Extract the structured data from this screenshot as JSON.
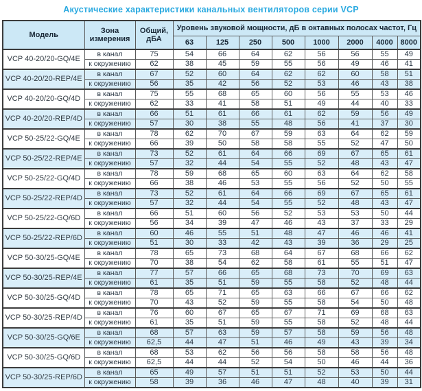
{
  "title": "Акустические характеристики канальных вентиляторов  серии VCP",
  "colors": {
    "title_text": "#29a9e0",
    "header_bg": "#cce8f6",
    "shaded_row_bg": "#d9eef9",
    "border": "#3c3c3c",
    "cell_text": "#2a3744"
  },
  "table": {
    "headers": {
      "model": "Модель",
      "zone": "Зона измерения",
      "total": "Общий, дБА",
      "total_line1": "Общий,",
      "total_line2": "дБА",
      "spl_group": "Уровень звуковой мощности, дБ в октавных полосах частот, Гц",
      "frequencies": [
        "63",
        "125",
        "250",
        "500",
        "1000",
        "2000",
        "4000",
        "8000"
      ]
    },
    "groups": [
      {
        "model": "VCP 40-20/20-GQ/4E",
        "shaded": false,
        "rows": [
          {
            "zone": "в канал",
            "total": "75",
            "values": [
              "54",
              "66",
              "64",
              "62",
              "56",
              "56",
              "55",
              "49"
            ]
          },
          {
            "zone": "к окружению",
            "total": "62",
            "values": [
              "38",
              "45",
              "59",
              "55",
              "56",
              "49",
              "46",
              "41"
            ]
          }
        ]
      },
      {
        "model": "VCP 40-20/20-REP/4E",
        "shaded": true,
        "rows": [
          {
            "zone": "в канал",
            "total": "67",
            "values": [
              "52",
              "60",
              "64",
              "62",
              "62",
              "60",
              "58",
              "51"
            ]
          },
          {
            "zone": "к окружению",
            "total": "56",
            "values": [
              "35",
              "42",
              "56",
              "52",
              "53",
              "46",
              "43",
              "38"
            ]
          }
        ]
      },
      {
        "model": "VCP 40-20/20-GQ/4D",
        "shaded": false,
        "rows": [
          {
            "zone": "в канал",
            "total": "75",
            "values": [
              "55",
              "68",
              "65",
              "60",
              "56",
              "55",
              "53",
              "46"
            ]
          },
          {
            "zone": "к окружению",
            "total": "62",
            "values": [
              "33",
              "41",
              "58",
              "51",
              "49",
              "44",
              "40",
              "33"
            ]
          }
        ]
      },
      {
        "model": "VCP 40-20/20-REP/4D",
        "shaded": true,
        "rows": [
          {
            "zone": "в канал",
            "total": "66",
            "values": [
              "51",
              "61",
              "66",
              "61",
              "62",
              "59",
              "56",
              "49"
            ]
          },
          {
            "zone": "к окружению",
            "total": "57",
            "values": [
              "30",
              "38",
              "55",
              "48",
              "56",
              "41",
              "37",
              "30"
            ]
          }
        ]
      },
      {
        "model": "VCP 50-25/22-GQ/4E",
        "shaded": false,
        "rows": [
          {
            "zone": "в канал",
            "total": "78",
            "values": [
              "62",
              "70",
              "67",
              "59",
              "63",
              "64",
              "62",
              "59"
            ]
          },
          {
            "zone": "к окружению",
            "total": "66",
            "values": [
              "39",
              "50",
              "58",
              "58",
              "55",
              "52",
              "47",
              "50"
            ]
          }
        ]
      },
      {
        "model": "VCP 50-25/22-REP/4E",
        "shaded": true,
        "rows": [
          {
            "zone": "в канал",
            "total": "73",
            "values": [
              "52",
              "61",
              "64",
              "66",
              "69",
              "67",
              "65",
              "61"
            ]
          },
          {
            "zone": "к окружению",
            "total": "57",
            "values": [
              "32",
              "44",
              "54",
              "55",
              "52",
              "48",
              "43",
              "47"
            ]
          }
        ]
      },
      {
        "model": "VCP 50-25/22-GQ/4D",
        "shaded": false,
        "rows": [
          {
            "zone": "в канал",
            "total": "78",
            "values": [
              "59",
              "68",
              "65",
              "60",
              "63",
              "64",
              "62",
              "58"
            ]
          },
          {
            "zone": "к окружению",
            "total": "66",
            "values": [
              "38",
              "46",
              "53",
              "55",
              "56",
              "52",
              "50",
              "55"
            ]
          }
        ]
      },
      {
        "model": "VCP 50-25/22-REP/4D",
        "shaded": true,
        "rows": [
          {
            "zone": "в канал",
            "total": "73",
            "values": [
              "52",
              "61",
              "64",
              "66",
              "69",
              "67",
              "65",
              "61"
            ]
          },
          {
            "zone": "к окружению",
            "total": "57",
            "values": [
              "32",
              "44",
              "54",
              "55",
              "52",
              "48",
              "43",
              "47"
            ]
          }
        ]
      },
      {
        "model": "VCP 50-25/22-GQ/6D",
        "shaded": false,
        "rows": [
          {
            "zone": "в канал",
            "total": "66",
            "values": [
              "51",
              "60",
              "56",
              "52",
              "53",
              "53",
              "50",
              "44"
            ]
          },
          {
            "zone": "к окружению",
            "total": "56",
            "values": [
              "34",
              "39",
              "47",
              "46",
              "43",
              "37",
              "33",
              "29"
            ]
          }
        ]
      },
      {
        "model": "VCP 50-25/22-REP/6D",
        "shaded": true,
        "rows": [
          {
            "zone": "в канал",
            "total": "60",
            "values": [
              "46",
              "55",
              "51",
              "48",
              "47",
              "46",
              "46",
              "41"
            ]
          },
          {
            "zone": "к окружению",
            "total": "51",
            "values": [
              "30",
              "33",
              "42",
              "43",
              "39",
              "36",
              "29",
              "25"
            ]
          }
        ]
      },
      {
        "model": "VCP 50-30/25-GQ/4E",
        "shaded": false,
        "rows": [
          {
            "zone": "в канал",
            "total": "78",
            "values": [
              "65",
              "73",
              "68",
              "64",
              "67",
              "68",
              "66",
              "62"
            ]
          },
          {
            "zone": "к окружению",
            "total": "70",
            "values": [
              "38",
              "54",
              "62",
              "58",
              "61",
              "55",
              "51",
              "47"
            ]
          }
        ]
      },
      {
        "model": "VCP 50-30/25-REP/4E",
        "shaded": true,
        "rows": [
          {
            "zone": "в канал",
            "total": "77",
            "values": [
              "57",
              "66",
              "65",
              "68",
              "73",
              "70",
              "69",
              "63"
            ]
          },
          {
            "zone": "к окружению",
            "total": "61",
            "values": [
              "35",
              "51",
              "59",
              "55",
              "58",
              "52",
              "48",
              "44"
            ]
          }
        ]
      },
      {
        "model": "VCP 50-30/25-GQ/4D",
        "shaded": false,
        "rows": [
          {
            "zone": "в канал",
            "total": "78",
            "values": [
              "65",
              "71",
              "65",
              "63",
              "66",
              "67",
              "66",
              "62"
            ]
          },
          {
            "zone": "к окружению",
            "total": "70",
            "values": [
              "43",
              "52",
              "59",
              "55",
              "58",
              "54",
              "50",
              "48"
            ]
          }
        ]
      },
      {
        "model": "VCP 50-30/25-REP/4D",
        "shaded": false,
        "rows": [
          {
            "zone": "в канал",
            "total": "76",
            "values": [
              "60",
              "67",
              "65",
              "67",
              "71",
              "69",
              "68",
              "63"
            ]
          },
          {
            "zone": "к окружению",
            "total": "61",
            "values": [
              "35",
              "51",
              "59",
              "55",
              "58",
              "52",
              "48",
              "44"
            ]
          }
        ]
      },
      {
        "model": "VCP 50-30/25-GQ/6E",
        "shaded": true,
        "rows": [
          {
            "zone": "в канал",
            "total": "68",
            "values": [
              "57",
              "63",
              "59",
              "57",
              "58",
              "59",
              "56",
              "48"
            ]
          },
          {
            "zone": "к окружению",
            "total": "62,5",
            "values": [
              "44",
              "47",
              "51",
              "46",
              "49",
              "43",
              "39",
              "34"
            ]
          }
        ]
      },
      {
        "model": "VCP 50-30/25-GQ/6D",
        "shaded": false,
        "rows": [
          {
            "zone": "в канал",
            "total": "68",
            "values": [
              "53",
              "62",
              "56",
              "56",
              "58",
              "58",
              "56",
              "48"
            ]
          },
          {
            "zone": "к окружению",
            "total": "62,5",
            "values": [
              "44",
              "44",
              "52",
              "54",
              "50",
              "46",
              "44",
              "36"
            ]
          }
        ]
      },
      {
        "model": "VCP 50-30/25-REP/6D",
        "shaded": true,
        "rows": [
          {
            "zone": "в канал",
            "total": "65",
            "values": [
              "49",
              "57",
              "51",
              "51",
              "52",
              "53",
              "50",
              "44"
            ]
          },
          {
            "zone": "к окружению",
            "total": "58",
            "values": [
              "39",
              "36",
              "46",
              "47",
              "48",
              "40",
              "39",
              "31"
            ]
          }
        ]
      }
    ]
  }
}
